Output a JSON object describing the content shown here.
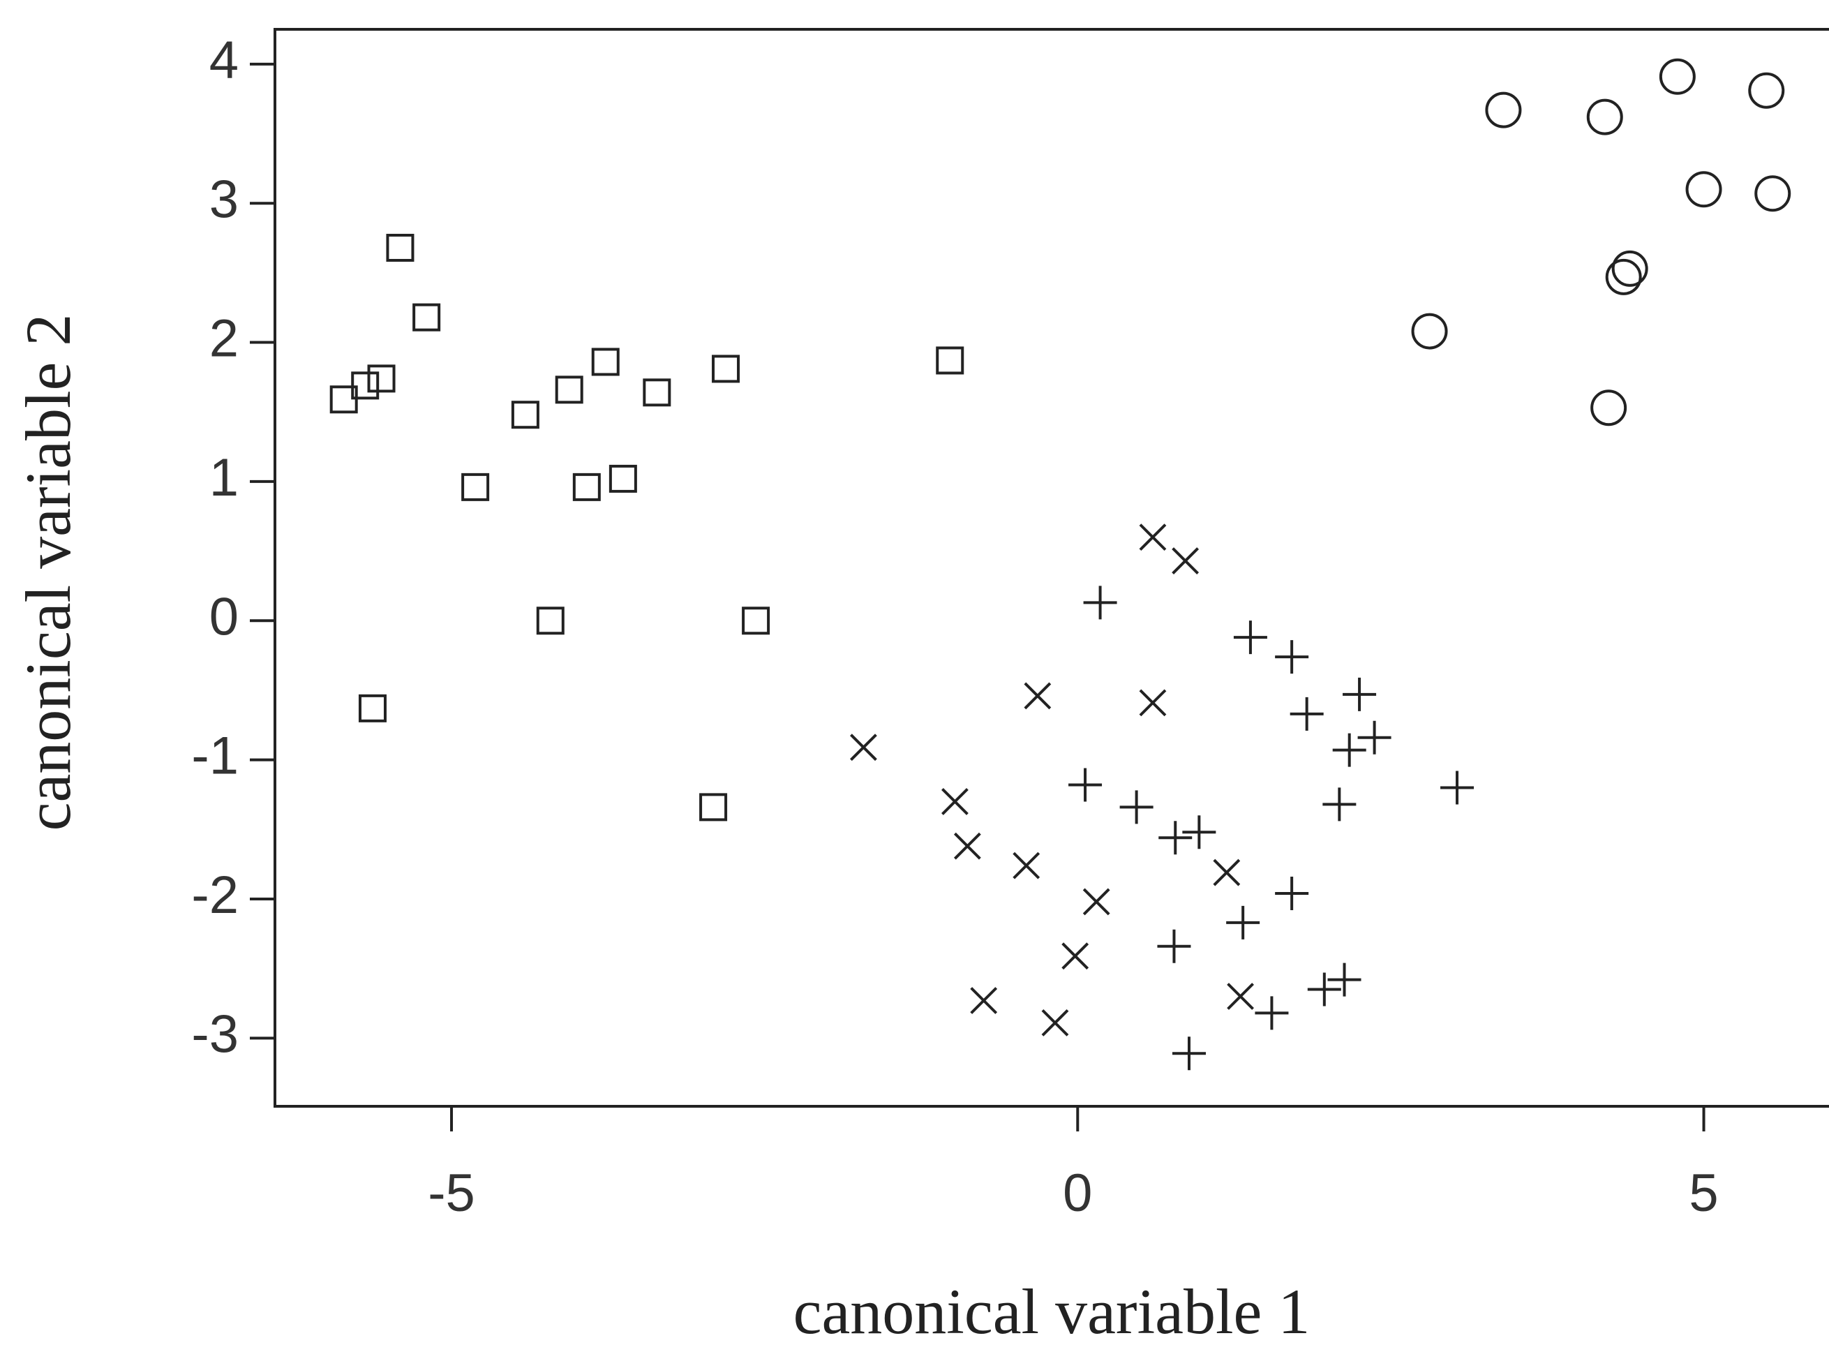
{
  "chart_data": {
    "type": "scatter",
    "xlabel": "canonical variable 1",
    "ylabel": "canonical variable 2",
    "xlim": [
      -6.41,
      6.0
    ],
    "ylim": [
      -3.49,
      4.25
    ],
    "xticks": [
      -5,
      0,
      5
    ],
    "yticks": [
      -3,
      -2,
      -1,
      0,
      1,
      2,
      3,
      4
    ],
    "series": [
      {
        "marker": "square",
        "color": "#222222",
        "x": [
          -5.41,
          -5.2,
          -5.86,
          -5.69,
          -5.56,
          -4.81,
          -4.41,
          -4.06,
          -3.77,
          -3.92,
          -3.63,
          -3.36,
          -2.81,
          -1.02,
          -4.21,
          -2.57,
          -5.63,
          -2.91
        ],
        "values": [
          2.68,
          2.18,
          1.59,
          1.69,
          1.74,
          0.96,
          1.48,
          1.66,
          1.86,
          0.96,
          1.02,
          1.64,
          1.81,
          1.87,
          0.0,
          0.0,
          -0.63,
          -1.34
        ]
      },
      {
        "marker": "circle",
        "color": "#222222",
        "x": [
          3.4,
          4.21,
          4.79,
          5.5,
          5.0,
          5.55,
          4.41,
          4.36,
          2.81,
          4.24
        ],
        "values": [
          3.67,
          3.62,
          3.91,
          3.81,
          3.1,
          3.07,
          2.53,
          2.47,
          2.08,
          1.53
        ]
      },
      {
        "marker": "x",
        "color": "#222222",
        "x": [
          0.6,
          0.86,
          -0.32,
          0.6,
          -1.71,
          -0.98,
          -0.88,
          -0.41,
          1.19,
          0.15,
          -0.02,
          -0.75,
          -0.18,
          1.3
        ],
        "values": [
          0.6,
          0.43,
          -0.54,
          -0.59,
          -0.91,
          -1.3,
          -1.62,
          -1.76,
          -1.81,
          -2.02,
          -2.41,
          -2.73,
          -2.89,
          -2.7
        ]
      },
      {
        "marker": "plus",
        "color": "#222222",
        "x": [
          0.18,
          1.38,
          1.71,
          2.25,
          1.83,
          2.17,
          2.37,
          0.06,
          0.47,
          3.03,
          2.09,
          0.78,
          0.97,
          1.71,
          1.32,
          0.77,
          1.97,
          2.13,
          1.55,
          0.89
        ],
        "values": [
          0.13,
          -0.12,
          -0.26,
          -0.53,
          -0.67,
          -0.93,
          -0.84,
          -1.18,
          -1.34,
          -1.2,
          -1.32,
          -1.56,
          -1.52,
          -1.96,
          -2.17,
          -2.34,
          -2.65,
          -2.58,
          -2.82,
          -3.11
        ]
      }
    ]
  }
}
